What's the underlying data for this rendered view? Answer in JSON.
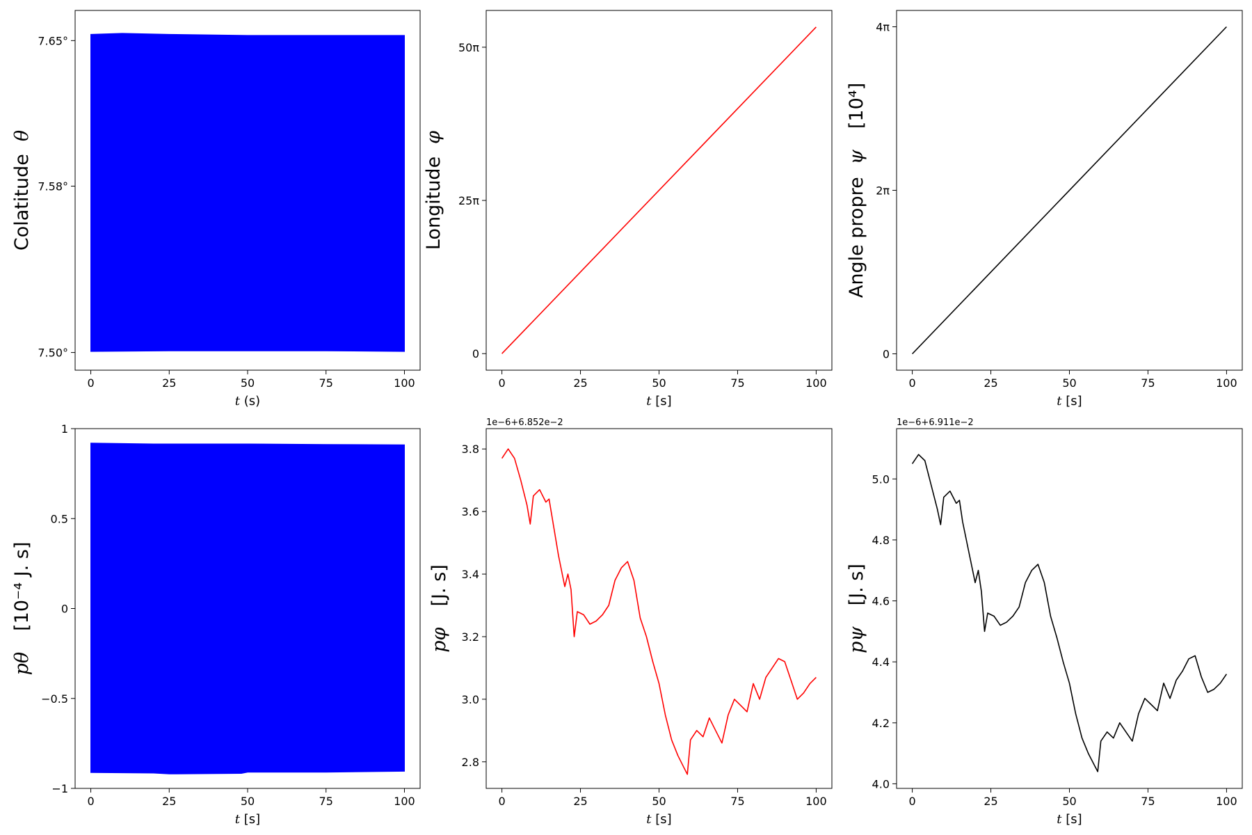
{
  "chart_data": [
    {
      "type": "area",
      "panel": "theta",
      "color": "#0000ff",
      "x_range": [
        0,
        100
      ],
      "band_top": [
        [
          0,
          7.653
        ],
        [
          10,
          7.6535
        ],
        [
          25,
          7.653
        ],
        [
          50,
          7.6525
        ],
        [
          75,
          7.6525
        ],
        [
          100,
          7.6525
        ]
      ],
      "band_bottom": [
        [
          0,
          7.5005
        ],
        [
          25,
          7.5008
        ],
        [
          50,
          7.5008
        ],
        [
          75,
          7.5008
        ],
        [
          100,
          7.5005
        ]
      ],
      "xlim": [
        -5,
        105
      ],
      "ylim": [
        7.4915,
        7.6645
      ],
      "xticks": [
        0,
        25,
        50,
        75,
        100
      ],
      "xtick_labels": [
        "0",
        "25",
        "50",
        "75",
        "100"
      ],
      "yticks": [
        7.5,
        7.58,
        7.65
      ],
      "ytick_labels": [
        "7.50°",
        "7.58°",
        "7.65°"
      ],
      "xlabel_sym": "t",
      "xlabel_unit": " (s)",
      "ylabel_text": "Colatitude",
      "ylabel_sym": "θ",
      "ylabel_unit": "",
      "offset_text": "",
      "grid": false
    },
    {
      "type": "line",
      "panel": "phi",
      "color": "#ff0000",
      "x": [
        0,
        100
      ],
      "y": [
        0,
        53.3
      ],
      "xlim": [
        -5,
        105
      ],
      "ylim": [
        -2.7,
        56.0
      ],
      "xticks": [
        0,
        25,
        50,
        75,
        100
      ],
      "xtick_labels": [
        "0",
        "25",
        "50",
        "75",
        "100"
      ],
      "yticks": [
        0,
        25,
        50
      ],
      "ytick_labels": [
        "0",
        "25π",
        "50π"
      ],
      "xlabel_sym": "t",
      "xlabel_unit": " [s]",
      "ylabel_text": "Longitude",
      "ylabel_sym": "φ",
      "ylabel_unit": "",
      "offset_text": "",
      "grid": false
    },
    {
      "type": "line",
      "panel": "psi",
      "color": "#000000",
      "x": [
        0,
        100
      ],
      "y": [
        0,
        4.0
      ],
      "xlim": [
        -5,
        105
      ],
      "ylim": [
        -0.2,
        4.2
      ],
      "xticks": [
        0,
        25,
        50,
        75,
        100
      ],
      "xtick_labels": [
        "0",
        "25",
        "50",
        "75",
        "100"
      ],
      "yticks": [
        0,
        2,
        4
      ],
      "ytick_labels": [
        "0",
        "2π",
        "4π"
      ],
      "xlabel_sym": "t",
      "xlabel_unit": " [s]",
      "ylabel_text": "Angle propre",
      "ylabel_sym": "ψ",
      "ylabel_unit": "[10⁴]",
      "offset_text": "",
      "grid": false
    },
    {
      "type": "area",
      "panel": "p_theta",
      "color": "#0000ff",
      "x_range": [
        0,
        100
      ],
      "band_top": [
        [
          0,
          0.92
        ],
        [
          20,
          0.915
        ],
        [
          50,
          0.915
        ],
        [
          75,
          0.912
        ],
        [
          100,
          0.91
        ]
      ],
      "band_bottom": [
        [
          0,
          -0.912
        ],
        [
          20,
          -0.915
        ],
        [
          25,
          -0.92
        ],
        [
          48,
          -0.917
        ],
        [
          50,
          -0.91
        ],
        [
          75,
          -0.91
        ],
        [
          100,
          -0.905
        ]
      ],
      "xlim": [
        -5,
        105
      ],
      "ylim": [
        -1.0,
        1.0
      ],
      "xticks": [
        0,
        25,
        50,
        75,
        100
      ],
      "xtick_labels": [
        "0",
        "25",
        "50",
        "75",
        "100"
      ],
      "yticks": [
        -1,
        -0.5,
        0,
        0.5,
        1
      ],
      "ytick_labels": [
        "−1",
        "−0.5",
        "0",
        "0.5",
        "1"
      ],
      "xlabel_sym": "t",
      "xlabel_unit": " [s]",
      "ylabel_text": "",
      "ylabel_sym": "pθ",
      "ylabel_unit": "[10⁻⁴ J. s]",
      "offset_text": "",
      "grid": false
    },
    {
      "type": "line",
      "panel": "p_phi",
      "color": "#ff0000",
      "x": [
        0,
        2,
        4,
        6,
        8,
        9,
        10,
        12,
        14,
        15,
        16,
        18,
        20,
        21,
        22,
        23,
        24,
        26,
        28,
        30,
        32,
        34,
        36,
        38,
        40,
        42,
        44,
        46,
        48,
        50,
        52,
        54,
        56,
        58,
        59,
        60,
        62,
        64,
        66,
        68,
        70,
        72,
        74,
        76,
        78,
        80,
        82,
        84,
        86,
        88,
        90,
        92,
        94,
        96,
        98,
        100
      ],
      "y": [
        3.77,
        3.8,
        3.77,
        3.7,
        3.62,
        3.56,
        3.65,
        3.67,
        3.63,
        3.64,
        3.58,
        3.46,
        3.36,
        3.4,
        3.35,
        3.2,
        3.28,
        3.27,
        3.24,
        3.25,
        3.27,
        3.3,
        3.38,
        3.42,
        3.44,
        3.38,
        3.26,
        3.2,
        3.12,
        3.05,
        2.95,
        2.87,
        2.82,
        2.78,
        2.76,
        2.87,
        2.9,
        2.88,
        2.94,
        2.9,
        2.86,
        2.95,
        3.0,
        2.98,
        2.96,
        3.05,
        3.0,
        3.07,
        3.1,
        3.13,
        3.12,
        3.06,
        3.0,
        3.02,
        3.05,
        3.07
      ],
      "xlim": [
        -5,
        105
      ],
      "ylim": [
        2.715,
        3.865
      ],
      "xticks": [
        0,
        25,
        50,
        75,
        100
      ],
      "xtick_labels": [
        "0",
        "25",
        "50",
        "75",
        "100"
      ],
      "yticks": [
        2.8,
        3.0,
        3.2,
        3.4,
        3.6,
        3.8
      ],
      "ytick_labels": [
        "2.8",
        "3.0",
        "3.2",
        "3.4",
        "3.6",
        "3.8"
      ],
      "xlabel_sym": "t",
      "xlabel_unit": " [s]",
      "ylabel_text": "",
      "ylabel_sym": "pφ",
      "ylabel_unit": "[J. s]",
      "offset_text": "1e−6+6.852e−2",
      "grid": false
    },
    {
      "type": "line",
      "panel": "p_psi",
      "color": "#000000",
      "x": [
        0,
        2,
        4,
        6,
        8,
        9,
        10,
        12,
        14,
        15,
        16,
        18,
        20,
        21,
        22,
        23,
        24,
        26,
        28,
        30,
        32,
        34,
        36,
        38,
        40,
        42,
        44,
        46,
        48,
        50,
        52,
        54,
        56,
        58,
        59,
        60,
        62,
        64,
        66,
        68,
        70,
        72,
        74,
        76,
        78,
        80,
        82,
        84,
        86,
        88,
        90,
        92,
        94,
        96,
        98,
        100
      ],
      "y": [
        5.05,
        5.08,
        5.06,
        4.98,
        4.9,
        4.85,
        4.94,
        4.96,
        4.92,
        4.93,
        4.86,
        4.76,
        4.66,
        4.7,
        4.63,
        4.5,
        4.56,
        4.55,
        4.52,
        4.53,
        4.55,
        4.58,
        4.66,
        4.7,
        4.72,
        4.66,
        4.55,
        4.48,
        4.4,
        4.33,
        4.23,
        4.15,
        4.1,
        4.06,
        4.04,
        4.14,
        4.17,
        4.15,
        4.2,
        4.17,
        4.14,
        4.23,
        4.28,
        4.26,
        4.24,
        4.33,
        4.28,
        4.34,
        4.37,
        4.41,
        4.42,
        4.35,
        4.3,
        4.31,
        4.33,
        4.36
      ],
      "xlim": [
        -5,
        105
      ],
      "ylim": [
        3.985,
        5.165
      ],
      "xticks": [
        0,
        25,
        50,
        75,
        100
      ],
      "xtick_labels": [
        "0",
        "25",
        "50",
        "75",
        "100"
      ],
      "yticks": [
        4.0,
        4.2,
        4.4,
        4.6,
        4.8,
        5.0
      ],
      "ytick_labels": [
        "4.0",
        "4.2",
        "4.4",
        "4.6",
        "4.8",
        "5.0"
      ],
      "xlabel_sym": "t",
      "xlabel_unit": " [s]",
      "ylabel_text": "",
      "ylabel_sym": "pψ",
      "ylabel_unit": "[J. s]",
      "offset_text": "1e−6+6.911e−2",
      "grid": false
    }
  ]
}
